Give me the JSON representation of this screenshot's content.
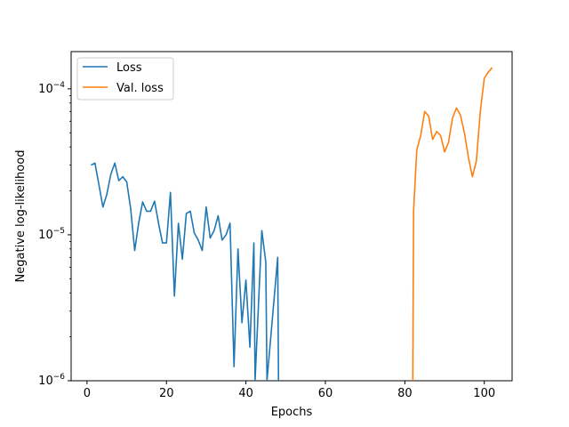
{
  "chart_data": {
    "type": "line",
    "title": "",
    "xlabel": "Epochs",
    "ylabel": "Negative log-likelihood",
    "yscale": "log",
    "xlim": [
      -4,
      107
    ],
    "ylim": [
      1e-06,
      0.00018
    ],
    "xticks": [
      0,
      20,
      40,
      60,
      80,
      100
    ],
    "yticks": [
      {
        "value": 1e-06,
        "base": "10",
        "exp": "−6"
      },
      {
        "value": 1e-05,
        "base": "10",
        "exp": "−5"
      },
      {
        "value": 0.0001,
        "base": "10",
        "exp": "−4"
      }
    ],
    "grid": false,
    "legend_position": "upper-left",
    "series": [
      {
        "name": "Loss",
        "color": "#1f77b4",
        "x": [
          1,
          2,
          3,
          4,
          5,
          6,
          7,
          8,
          9,
          10,
          11,
          12,
          13,
          14,
          15,
          16,
          17,
          18,
          19,
          20,
          21,
          22,
          23,
          24,
          25,
          26,
          27,
          28,
          29,
          30,
          31,
          32,
          33,
          34,
          35,
          36,
          37,
          38,
          39,
          40,
          41,
          42,
          42.3,
          44,
          45,
          45.3,
          48,
          48.2
        ],
        "y": [
          3e-05,
          3.1e-05,
          2.2e-05,
          1.55e-05,
          1.9e-05,
          2.6e-05,
          3.1e-05,
          2.35e-05,
          2.5e-05,
          2.3e-05,
          1.5e-05,
          7.8e-06,
          1.2e-05,
          1.68e-05,
          1.45e-05,
          1.45e-05,
          1.7e-05,
          1.2e-05,
          8.8e-06,
          8.8e-06,
          1.95e-05,
          3.8e-06,
          1.2e-05,
          6.8e-06,
          1.4e-05,
          1.45e-05,
          1.03e-05,
          9.2e-06,
          7.8e-06,
          1.55e-05,
          9.5e-06,
          1.07e-05,
          1.35e-05,
          9.2e-06,
          1e-05,
          1.2e-05,
          1.25e-06,
          8e-06,
          2.5e-06,
          4.9e-06,
          1.7e-06,
          8.8e-06,
          1e-06,
          1.07e-05,
          6.5e-06,
          1e-06,
          7e-06,
          1e-06
        ]
      },
      {
        "name": "Val. loss",
        "color": "#ff7f0e",
        "x": [
          82,
          82.2,
          83,
          84,
          85,
          86,
          87,
          88,
          89,
          90,
          91,
          92,
          93,
          94,
          95,
          96,
          97,
          98,
          99,
          100,
          101,
          102
        ],
        "y": [
          1e-06,
          1.45e-05,
          3.8e-05,
          4.8e-05,
          7e-05,
          6.5e-05,
          4.5e-05,
          5.1e-05,
          4.8e-05,
          3.7e-05,
          4.3e-05,
          6.3e-05,
          7.4e-05,
          6.6e-05,
          5e-05,
          3.4e-05,
          2.5e-05,
          3.2e-05,
          7e-05,
          0.000118,
          0.00013,
          0.00014
        ]
      }
    ]
  }
}
